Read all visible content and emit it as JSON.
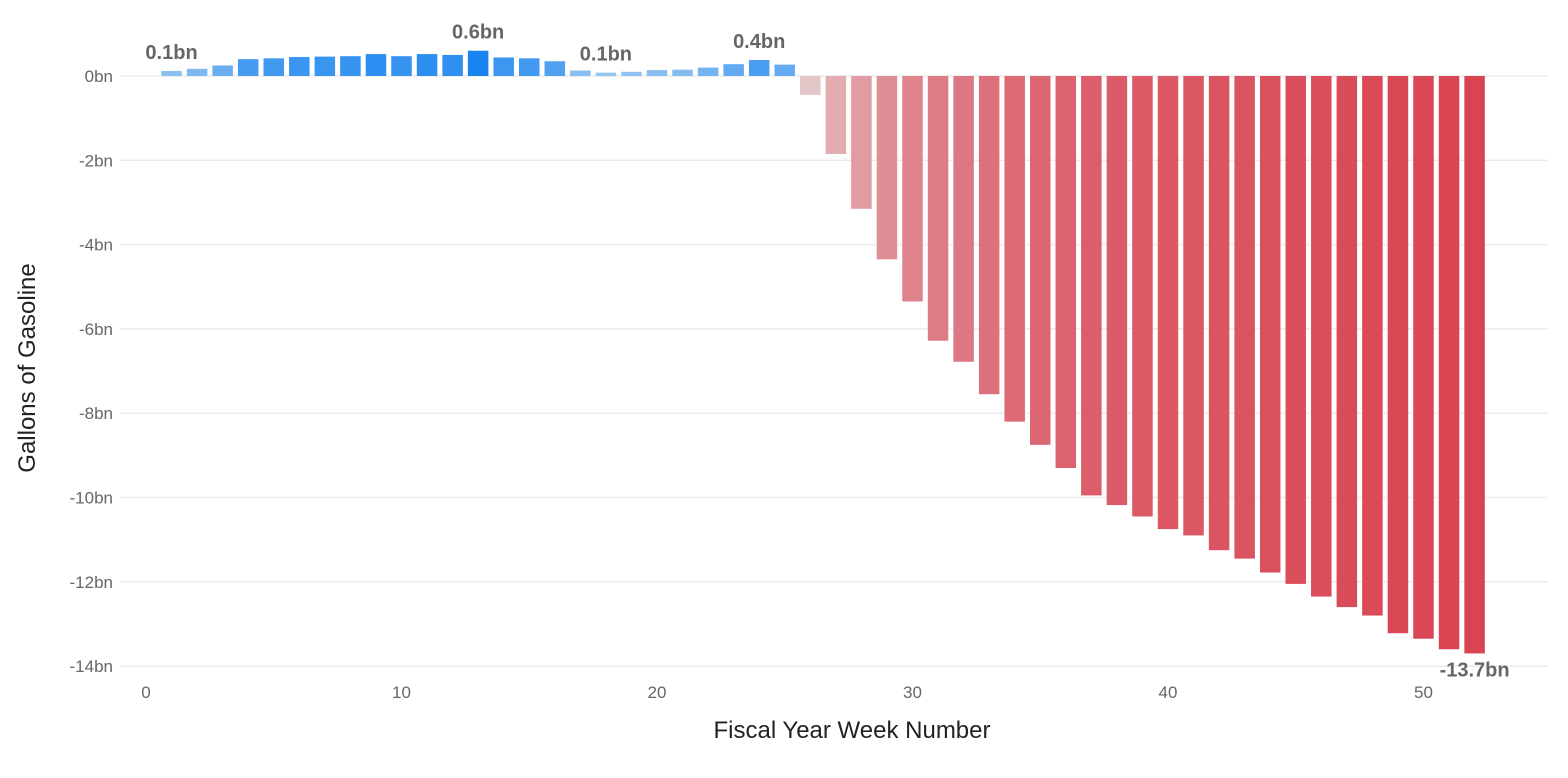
{
  "chart_data": {
    "type": "bar",
    "title": "",
    "xlabel": "Fiscal Year Week Number",
    "ylabel": "Gallons of Gasoline",
    "xlim": [
      -0.5,
      55
    ],
    "ylim": [
      -14,
      0.8
    ],
    "x_ticks": [
      {
        "value": 0,
        "label": "0"
      },
      {
        "value": 10,
        "label": "10"
      },
      {
        "value": 20,
        "label": "20"
      },
      {
        "value": 30,
        "label": "30"
      },
      {
        "value": 40,
        "label": "40"
      },
      {
        "value": 50,
        "label": "50"
      }
    ],
    "y_ticks": [
      {
        "value": 0,
        "label": "0bn"
      },
      {
        "value": -2,
        "label": "-2bn"
      },
      {
        "value": -4,
        "label": "-4bn"
      },
      {
        "value": -6,
        "label": "-6bn"
      },
      {
        "value": -8,
        "label": "-8bn"
      },
      {
        "value": -10,
        "label": "-10bn"
      },
      {
        "value": -12,
        "label": "-12bn"
      },
      {
        "value": -14,
        "label": "-14bn"
      }
    ],
    "grid": true,
    "units": "bn gallons",
    "x": [
      1,
      2,
      3,
      4,
      5,
      6,
      7,
      8,
      9,
      10,
      11,
      12,
      13,
      14,
      15,
      16,
      17,
      18,
      19,
      20,
      21,
      22,
      23,
      24,
      25,
      26,
      27,
      28,
      29,
      30,
      31,
      32,
      33,
      34,
      35,
      36,
      37,
      38,
      39,
      40,
      41,
      42,
      43,
      44,
      45,
      46,
      47,
      48,
      49,
      50,
      51,
      52
    ],
    "values": [
      0.12,
      0.17,
      0.25,
      0.4,
      0.42,
      0.45,
      0.46,
      0.47,
      0.52,
      0.47,
      0.52,
      0.5,
      0.6,
      0.44,
      0.42,
      0.35,
      0.13,
      0.08,
      0.1,
      0.14,
      0.15,
      0.2,
      0.28,
      0.38,
      0.27,
      -0.45,
      -1.85,
      -3.15,
      -4.35,
      -5.35,
      -6.28,
      -6.78,
      -7.55,
      -8.2,
      -8.75,
      -9.3,
      -9.95,
      -10.18,
      -10.45,
      -10.75,
      -10.9,
      -11.25,
      -11.45,
      -11.78,
      -12.05,
      -12.35,
      -12.6,
      -12.8,
      -13.22,
      -13.35,
      -13.6,
      -13.7
    ],
    "color_scale": {
      "positive": "#1a85f0",
      "positive_light": "#b8d6f2",
      "negative": "#d94452",
      "negative_light": "#e6d9da"
    },
    "annotations": [
      {
        "x": 1,
        "value": 0.1,
        "label": "0.1bn"
      },
      {
        "x": 13,
        "value": 0.6,
        "label": "0.6bn"
      },
      {
        "x": 18,
        "value": 0.1,
        "label": "0.1bn"
      },
      {
        "x": 24,
        "value": 0.4,
        "label": "0.4bn"
      },
      {
        "x": 52,
        "value": -13.7,
        "label": "-13.7bn",
        "position": "below"
      }
    ]
  }
}
